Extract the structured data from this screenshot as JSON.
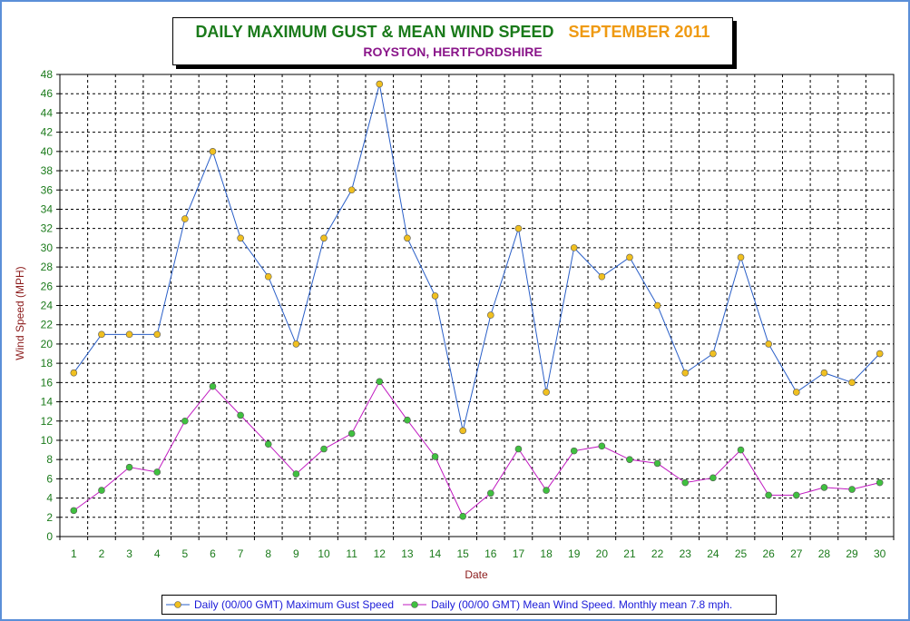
{
  "title": {
    "main": "DAILY MAXIMUM GUST & MEAN WIND SPEED",
    "date": "SEPTEMBER 2011",
    "location": "ROYSTON, HERTFORDSHIRE"
  },
  "colors": {
    "frame_border": "#5b8fd8",
    "title_main": "#1a7a1a",
    "title_date": "#ef9a12",
    "title_location": "#8a168a",
    "axis_text": "#1a7a1a",
    "axis_label": "#8b1a1a",
    "gust_line": "#2a5fc8",
    "gust_marker": "#f0c020",
    "mean_line": "#c01ac0",
    "mean_marker": "#40c040",
    "legend_text": "#1a1ad8"
  },
  "chart_data": {
    "type": "line",
    "xlabel": "Date",
    "ylabel": "Wind Speed (MPH)",
    "ylim": [
      0,
      48
    ],
    "ytick_step": 2,
    "grid": true,
    "legend_position": "bottom",
    "x": [
      1,
      2,
      3,
      4,
      5,
      6,
      7,
      8,
      9,
      10,
      11,
      12,
      13,
      14,
      15,
      16,
      17,
      18,
      19,
      20,
      21,
      22,
      23,
      24,
      25,
      26,
      27,
      28,
      29,
      30
    ],
    "series": [
      {
        "name": "Daily (00/00 GMT) Maximum Gust Speed",
        "values": [
          17,
          21,
          21,
          21,
          33,
          40,
          31,
          27,
          20,
          31,
          36,
          47,
          31,
          25,
          11,
          23,
          32,
          15,
          30,
          27,
          29,
          24,
          17,
          19,
          29,
          20,
          15,
          17,
          16,
          19
        ]
      },
      {
        "name": "Daily (00/00 GMT) Mean Wind Speed. Monthly mean 7.8 mph.",
        "values": [
          2.7,
          4.8,
          7.2,
          6.7,
          12.0,
          15.6,
          12.6,
          9.6,
          6.5,
          9.1,
          10.7,
          16.1,
          12.1,
          8.3,
          2.1,
          4.5,
          9.1,
          4.8,
          8.9,
          9.4,
          8.0,
          7.6,
          5.6,
          6.1,
          9.0,
          4.3,
          4.3,
          5.1,
          4.9,
          5.6
        ]
      }
    ]
  }
}
